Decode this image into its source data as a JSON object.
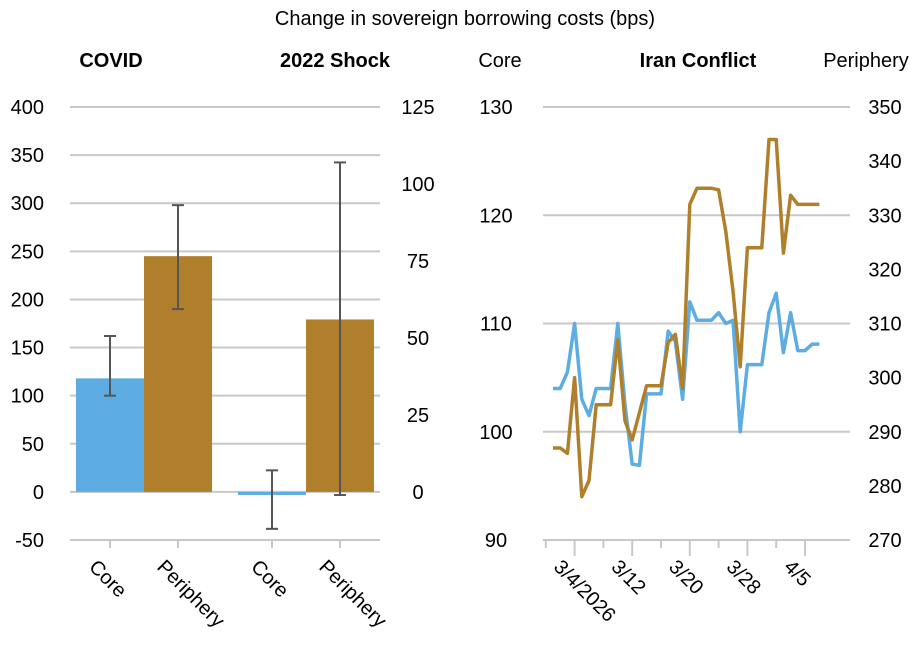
{
  "title": "Change in sovereign borrowing costs (bps)",
  "colors": {
    "core": "#5dade2",
    "periphery": "#b07f2c",
    "grid": "#c8c8c8",
    "errorbar": "#555555"
  },
  "panels": {
    "covid": {
      "title": "COVID"
    },
    "shock2022": {
      "title": "2022 Shock"
    },
    "iran": {
      "title": "Iran Conflict",
      "left_axis_label": "Core",
      "right_axis_label": "Periphery"
    }
  },
  "chart_data": [
    {
      "type": "bar",
      "title": "COVID",
      "categories": [
        "Core",
        "Periphery"
      ],
      "values": [
        118,
        245
      ],
      "error_low": [
        100,
        190
      ],
      "error_high": [
        162,
        298
      ],
      "ylim": [
        -50,
        400
      ],
      "yticks": [
        -50,
        0,
        50,
        100,
        150,
        200,
        250,
        300,
        350,
        400
      ],
      "ylabel": "",
      "axis": "left",
      "grid": true
    },
    {
      "type": "bar",
      "title": "2022 Shock",
      "categories": [
        "Core",
        "Periphery"
      ],
      "values": [
        -1,
        56
      ],
      "error_low": [
        -12,
        -1
      ],
      "error_high": [
        7,
        107
      ],
      "ylim": [
        -15.625,
        125
      ],
      "yticks": [
        0,
        25,
        50,
        75,
        100,
        125
      ],
      "ylabel": "",
      "axis": "right",
      "grid": true
    },
    {
      "type": "line",
      "title": "Iran Conflict",
      "xlabel": "",
      "xtick_labels": [
        "3/4/2026",
        "3/12",
        "3/20",
        "3/28",
        "4/5"
      ],
      "x": [
        "3/1",
        "3/2",
        "3/3",
        "3/4",
        "3/5",
        "3/6",
        "3/7",
        "3/8",
        "3/9",
        "3/10",
        "3/11",
        "3/12",
        "3/13",
        "3/14",
        "3/15",
        "3/16",
        "3/17",
        "3/18",
        "3/19",
        "3/20",
        "3/21",
        "3/22",
        "3/23",
        "3/24",
        "3/25",
        "3/26",
        "3/27",
        "3/28",
        "3/29",
        "3/30",
        "3/31",
        "4/1",
        "4/2",
        "4/3",
        "4/4",
        "4/5",
        "4/6",
        "4/7"
      ],
      "series": [
        {
          "name": "Core",
          "axis": "left",
          "ylim": [
            90,
            130
          ],
          "yticks": [
            90,
            100,
            110,
            120,
            130
          ],
          "values": [
            104.0,
            104.0,
            105.5,
            110.0,
            103.0,
            101.5,
            104.0,
            104.0,
            104.0,
            110.0,
            102.5,
            97.0,
            96.9,
            103.5,
            103.5,
            103.5,
            109.3,
            108.3,
            103.0,
            112.0,
            110.3,
            110.3,
            110.3,
            111.0,
            110.0,
            110.3,
            100.0,
            106.2,
            106.2,
            106.2,
            111.0,
            112.8,
            107.3,
            111.0,
            107.5,
            107.5,
            108.1,
            108.1
          ]
        },
        {
          "name": "Periphery",
          "axis": "right",
          "ylim": [
            270,
            350
          ],
          "yticks": [
            270,
            280,
            290,
            300,
            310,
            320,
            330,
            340,
            350
          ],
          "values": [
            287.0,
            287.0,
            286.0,
            300.0,
            278.0,
            281.0,
            295.0,
            295.0,
            295.0,
            307.0,
            292.0,
            288.5,
            293.5,
            298.5,
            298.5,
            298.5,
            306.5,
            308.0,
            298.0,
            332.0,
            335.0,
            335.0,
            335.0,
            334.7,
            327.0,
            316.0,
            302.0,
            324.0,
            324.0,
            324.0,
            344.0,
            344.0,
            323.0,
            333.7,
            332.0,
            332.0,
            332.0,
            332.0
          ]
        }
      ],
      "grid": true
    }
  ]
}
